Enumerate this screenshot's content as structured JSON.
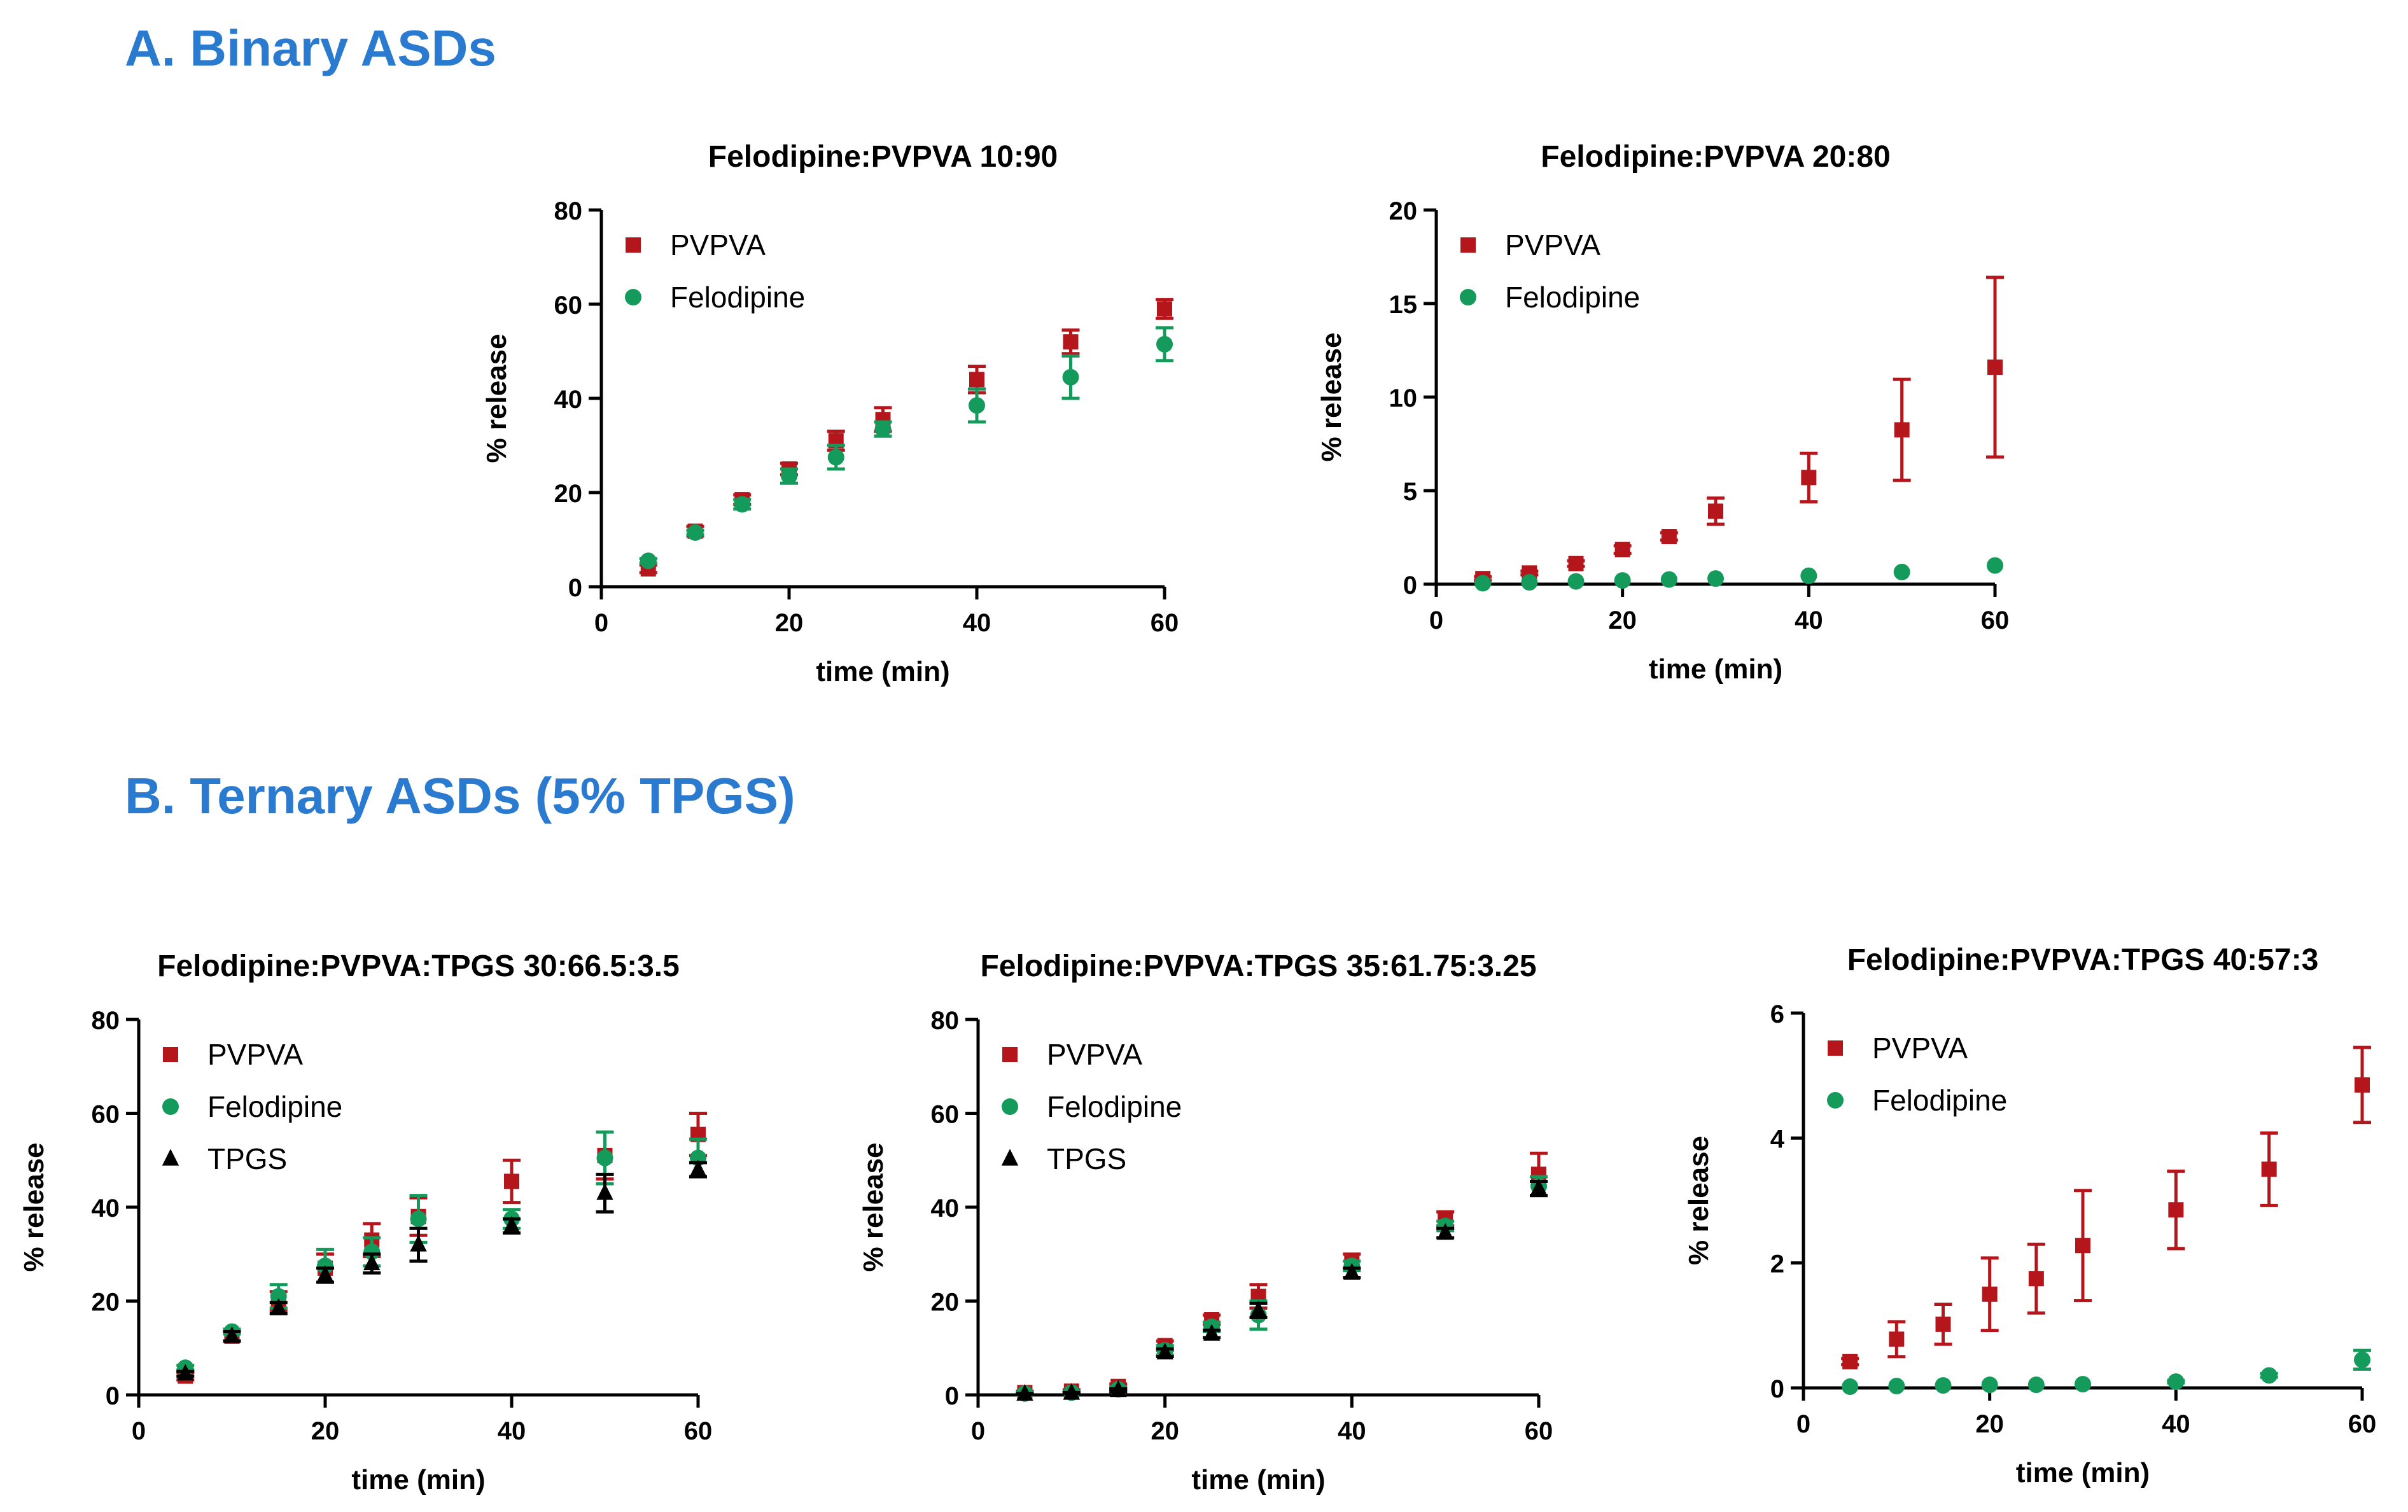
{
  "sections": {
    "a_title": "A. Binary ASDs",
    "b_title": "B. Ternary ASDs (5% TPGS)"
  },
  "colors": {
    "title_blue": "#2a7bcf",
    "pvpva": "#b5161c",
    "felodipine": "#149a5a",
    "tpgs": "#000000"
  },
  "chart_data": [
    {
      "id": "a1",
      "type": "scatter",
      "title": "Felodipine:PVPVA 10:90",
      "xlabel": "time (min)",
      "ylabel": "% release",
      "xlim": [
        0,
        60
      ],
      "ylim": [
        0,
        80
      ],
      "xticks": [
        0,
        20,
        40,
        60
      ],
      "yticks": [
        0,
        20,
        40,
        60,
        80
      ],
      "legend_position": "top-left",
      "series": [
        {
          "name": "PVPVA",
          "marker": "square",
          "color": "#b5161c",
          "x": [
            5,
            10,
            15,
            20,
            25,
            30,
            40,
            50,
            60
          ],
          "y": [
            3.8,
            11.8,
            18.5,
            25,
            31,
            35.5,
            44,
            52,
            59
          ],
          "err": [
            0.8,
            1,
            1,
            1.2,
            2,
            2.5,
            2.8,
            2.5,
            2
          ]
        },
        {
          "name": "Felodipine",
          "marker": "circle",
          "color": "#149a5a",
          "x": [
            5,
            10,
            15,
            20,
            25,
            30,
            40,
            50,
            60
          ],
          "y": [
            5.5,
            11.5,
            17.5,
            23.5,
            27.5,
            33.5,
            38.5,
            44.5,
            51.5
          ],
          "err": [
            0.5,
            0.5,
            1,
            1.5,
            2.5,
            1.5,
            3.5,
            4.5,
            3.5
          ]
        }
      ]
    },
    {
      "id": "a2",
      "type": "scatter",
      "title": "Felodipine:PVPVA 20:80",
      "xlabel": "time (min)",
      "ylabel": "% release",
      "xlim": [
        0,
        60
      ],
      "ylim": [
        0,
        20
      ],
      "xticks": [
        0,
        20,
        40,
        60
      ],
      "yticks": [
        0,
        5,
        10,
        15,
        20
      ],
      "legend_position": "top-left",
      "series": [
        {
          "name": "PVPVA",
          "marker": "square",
          "color": "#b5161c",
          "x": [
            5,
            10,
            15,
            20,
            25,
            30,
            40,
            50,
            60
          ],
          "y": [
            0.3,
            0.6,
            1.1,
            1.85,
            2.55,
            3.9,
            5.7,
            8.25,
            11.6
          ],
          "err": [
            0.1,
            0.1,
            0.15,
            0.2,
            0.2,
            0.7,
            1.3,
            2.7,
            4.8
          ]
        },
        {
          "name": "Felodipine",
          "marker": "circle",
          "color": "#149a5a",
          "x": [
            5,
            10,
            15,
            20,
            25,
            30,
            40,
            50,
            60
          ],
          "y": [
            0.05,
            0.1,
            0.15,
            0.2,
            0.25,
            0.3,
            0.45,
            0.65,
            1.0
          ],
          "err": [
            0,
            0,
            0,
            0,
            0,
            0,
            0,
            0,
            0
          ]
        }
      ]
    },
    {
      "id": "b1",
      "type": "scatter",
      "title": "Felodipine:PVPVA:TPGS 30:66.5:3.5",
      "xlabel": "time (min)",
      "ylabel": "% release",
      "xlim": [
        0,
        60
      ],
      "ylim": [
        0,
        80
      ],
      "xticks": [
        0,
        20,
        40,
        60
      ],
      "yticks": [
        0,
        20,
        40,
        60,
        80
      ],
      "legend_position": "top-left",
      "series": [
        {
          "name": "PVPVA",
          "marker": "square",
          "color": "#b5161c",
          "x": [
            5,
            10,
            15,
            20,
            25,
            30,
            40,
            50,
            60
          ],
          "y": [
            4,
            12.5,
            20,
            27,
            33,
            38,
            45.5,
            51,
            55.5
          ],
          "err": [
            0.8,
            1,
            2,
            3,
            3.5,
            4,
            4.5,
            5,
            4.5
          ]
        },
        {
          "name": "Felodipine",
          "marker": "circle",
          "color": "#149a5a",
          "x": [
            5,
            10,
            15,
            20,
            25,
            30,
            40,
            50,
            60
          ],
          "y": [
            5.8,
            13.5,
            21,
            27.5,
            30.5,
            37.5,
            37.5,
            50.5,
            50.5
          ],
          "err": [
            0.5,
            0.5,
            2.5,
            3.5,
            3,
            5,
            2,
            5.5,
            4
          ]
        },
        {
          "name": "TPGS",
          "marker": "triangle",
          "color": "#000000",
          "x": [
            5,
            10,
            15,
            20,
            25,
            30,
            40,
            50,
            60
          ],
          "y": [
            4.5,
            12.5,
            18.5,
            25.5,
            28,
            32,
            36,
            43,
            48
          ],
          "err": [
            0.5,
            1,
            1.2,
            1.5,
            2,
            3.5,
            1.5,
            4,
            1.5
          ]
        }
      ]
    },
    {
      "id": "b2",
      "type": "scatter",
      "title": "Felodipine:PVPVA:TPGS 35:61.75:3.25",
      "xlabel": "time (min)",
      "ylabel": "% release",
      "xlim": [
        0,
        60
      ],
      "ylim": [
        0,
        80
      ],
      "xticks": [
        0,
        20,
        40,
        60
      ],
      "yticks": [
        0,
        20,
        40,
        60,
        80
      ],
      "legend_position": "top-left",
      "series": [
        {
          "name": "PVPVA",
          "marker": "square",
          "color": "#b5161c",
          "x": [
            5,
            10,
            15,
            20,
            25,
            30,
            40,
            50,
            60
          ],
          "y": [
            0.5,
            0.8,
            1.8,
            10.5,
            16,
            21,
            28.5,
            37.5,
            47
          ],
          "err": [
            0.3,
            0.3,
            0.5,
            1,
            1,
            2.5,
            1.5,
            1.5,
            4.5
          ]
        },
        {
          "name": "Felodipine",
          "marker": "circle",
          "color": "#149a5a",
          "x": [
            5,
            10,
            15,
            20,
            25,
            30,
            40,
            50,
            60
          ],
          "y": [
            0.3,
            0.5,
            1.2,
            9.5,
            14.5,
            17,
            27.5,
            36,
            44.5
          ],
          "err": [
            0.2,
            0.2,
            0.5,
            1,
            1,
            3,
            1,
            1,
            2
          ]
        },
        {
          "name": "TPGS",
          "marker": "triangle",
          "color": "#000000",
          "x": [
            5,
            10,
            15,
            20,
            25,
            30,
            40,
            50,
            60
          ],
          "y": [
            0.2,
            0.4,
            1,
            9,
            13,
            18,
            26,
            34.5,
            44
          ],
          "err": [
            0.1,
            0.1,
            0.3,
            0.8,
            0.8,
            1.5,
            1,
            1,
            1.5
          ]
        }
      ]
    },
    {
      "id": "b3",
      "type": "scatter",
      "title": "Felodipine:PVPVA:TPGS 40:57:3",
      "xlabel": "time (min)",
      "ylabel": "% release",
      "xlim": [
        0,
        60
      ],
      "ylim": [
        0,
        6
      ],
      "xticks": [
        0,
        20,
        40,
        60
      ],
      "yticks": [
        0,
        2,
        4,
        6
      ],
      "legend_position": "top-left",
      "series": [
        {
          "name": "PVPVA",
          "marker": "square",
          "color": "#b5161c",
          "x": [
            5,
            10,
            15,
            20,
            25,
            30,
            40,
            50,
            60
          ],
          "y": [
            0.42,
            0.78,
            1.02,
            1.5,
            1.75,
            2.28,
            2.85,
            3.5,
            4.85
          ],
          "err": [
            0.05,
            0.28,
            0.32,
            0.58,
            0.55,
            0.88,
            0.62,
            0.58,
            0.6
          ]
        },
        {
          "name": "Felodipine",
          "marker": "circle",
          "color": "#149a5a",
          "x": [
            5,
            10,
            15,
            20,
            25,
            30,
            40,
            50,
            60
          ],
          "y": [
            0.02,
            0.03,
            0.04,
            0.05,
            0.05,
            0.06,
            0.1,
            0.2,
            0.45
          ],
          "err": [
            0,
            0,
            0,
            0,
            0,
            0,
            0.02,
            0.03,
            0.15
          ]
        }
      ]
    }
  ]
}
